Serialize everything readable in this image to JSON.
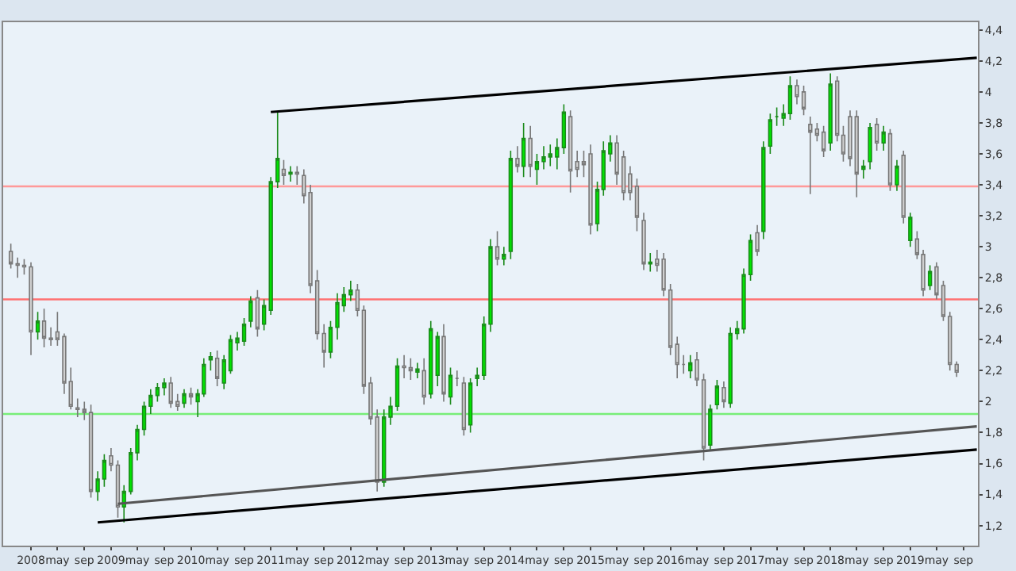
{
  "chart_data": {
    "type": "candlestick",
    "x": [
      "2007-10",
      "2007-11",
      "2007-12",
      "2008-01",
      "2008-02",
      "2008-03",
      "2008-04",
      "2008-05",
      "2008-06",
      "2008-07",
      "2008-08",
      "2008-09",
      "2008-10",
      "2008-11",
      "2008-12",
      "2009-01",
      "2009-02",
      "2009-03",
      "2009-04",
      "2009-05",
      "2009-06",
      "2009-07",
      "2009-08",
      "2009-09",
      "2009-10",
      "2009-11",
      "2009-12",
      "2010-01",
      "2010-02",
      "2010-03",
      "2010-04",
      "2010-05",
      "2010-06",
      "2010-07",
      "2010-08",
      "2010-09",
      "2010-10",
      "2010-11",
      "2010-12",
      "2011-01",
      "2011-02",
      "2011-03",
      "2011-04",
      "2011-05",
      "2011-06",
      "2011-07",
      "2011-08",
      "2011-09",
      "2011-10",
      "2011-11",
      "2011-12",
      "2012-01",
      "2012-02",
      "2012-03",
      "2012-04",
      "2012-05",
      "2012-06",
      "2012-07",
      "2012-08",
      "2012-09",
      "2012-10",
      "2012-11",
      "2012-12",
      "2013-01",
      "2013-02",
      "2013-03",
      "2013-04",
      "2013-05",
      "2013-06",
      "2013-07",
      "2013-08",
      "2013-09",
      "2013-10",
      "2013-11",
      "2013-12",
      "2014-01",
      "2014-02",
      "2014-03",
      "2014-04",
      "2014-05",
      "2014-06",
      "2014-07",
      "2014-08",
      "2014-09",
      "2014-10",
      "2014-11",
      "2014-12",
      "2015-01",
      "2015-02",
      "2015-03",
      "2015-04",
      "2015-05",
      "2015-06",
      "2015-07",
      "2015-08",
      "2015-09",
      "2015-10",
      "2015-11",
      "2015-12",
      "2016-01",
      "2016-02",
      "2016-03",
      "2016-04",
      "2016-05",
      "2016-06",
      "2016-07",
      "2016-08",
      "2016-09",
      "2016-10",
      "2016-11",
      "2016-12",
      "2017-01",
      "2017-02",
      "2017-03",
      "2017-04",
      "2017-05",
      "2017-06",
      "2017-07",
      "2017-08",
      "2017-09",
      "2017-10",
      "2017-11",
      "2017-12",
      "2018-01",
      "2018-02",
      "2018-03",
      "2018-04",
      "2018-05",
      "2018-06",
      "2018-07",
      "2018-08",
      "2018-09",
      "2018-10",
      "2018-11",
      "2018-12",
      "2019-01",
      "2019-02",
      "2019-03",
      "2019-04",
      "2019-05",
      "2019-06",
      "2019-07",
      "2019-08"
    ],
    "ohlc": [
      [
        2.97,
        3.02,
        2.86,
        2.89
      ],
      [
        2.89,
        2.93,
        2.8,
        2.88
      ],
      [
        2.88,
        2.92,
        2.82,
        2.87
      ],
      [
        2.87,
        2.9,
        2.3,
        2.45
      ],
      [
        2.45,
        2.58,
        2.4,
        2.52
      ],
      [
        2.52,
        2.6,
        2.35,
        2.41
      ],
      [
        2.41,
        2.48,
        2.36,
        2.4
      ],
      [
        2.45,
        2.58,
        2.36,
        2.4
      ],
      [
        2.42,
        2.44,
        2.05,
        2.12
      ],
      [
        2.13,
        2.22,
        1.95,
        1.97
      ],
      [
        1.96,
        2.02,
        1.9,
        1.95
      ],
      [
        1.95,
        2.0,
        1.88,
        1.93
      ],
      [
        1.93,
        1.98,
        1.38,
        1.42
      ],
      [
        1.42,
        1.55,
        1.36,
        1.5
      ],
      [
        1.5,
        1.66,
        1.45,
        1.62
      ],
      [
        1.65,
        1.7,
        1.55,
        1.59
      ],
      [
        1.59,
        1.62,
        1.25,
        1.32
      ],
      [
        1.32,
        1.46,
        1.22,
        1.42
      ],
      [
        1.42,
        1.7,
        1.4,
        1.67
      ],
      [
        1.67,
        1.85,
        1.62,
        1.82
      ],
      [
        1.82,
        2.0,
        1.78,
        1.97
      ],
      [
        1.97,
        2.08,
        1.92,
        2.04
      ],
      [
        2.04,
        2.12,
        2.0,
        2.09
      ],
      [
        2.09,
        2.15,
        2.04,
        2.12
      ],
      [
        2.12,
        2.16,
        1.96,
        1.99
      ],
      [
        2.0,
        2.05,
        1.94,
        1.97
      ],
      [
        1.99,
        2.08,
        1.96,
        2.05
      ],
      [
        2.05,
        2.09,
        1.98,
        2.03
      ],
      [
        2.0,
        2.08,
        1.9,
        2.05
      ],
      [
        2.05,
        2.28,
        2.03,
        2.24
      ],
      [
        2.27,
        2.32,
        2.2,
        2.29
      ],
      [
        2.28,
        2.33,
        2.1,
        2.15
      ],
      [
        2.12,
        2.3,
        2.08,
        2.27
      ],
      [
        2.2,
        2.43,
        2.18,
        2.4
      ],
      [
        2.38,
        2.45,
        2.33,
        2.41
      ],
      [
        2.39,
        2.54,
        2.36,
        2.5
      ],
      [
        2.52,
        2.68,
        2.48,
        2.65
      ],
      [
        2.67,
        2.72,
        2.42,
        2.47
      ],
      [
        2.5,
        2.66,
        2.46,
        2.62
      ],
      [
        2.59,
        3.45,
        2.56,
        3.42
      ],
      [
        3.42,
        3.87,
        3.38,
        3.57
      ],
      [
        3.5,
        3.56,
        3.4,
        3.46
      ],
      [
        3.47,
        3.52,
        3.42,
        3.48
      ],
      [
        3.48,
        3.52,
        3.4,
        3.47
      ],
      [
        3.46,
        3.5,
        3.28,
        3.33
      ],
      [
        3.35,
        3.4,
        2.7,
        2.75
      ],
      [
        2.78,
        2.85,
        2.4,
        2.44
      ],
      [
        2.44,
        2.5,
        2.22,
        2.32
      ],
      [
        2.32,
        2.52,
        2.28,
        2.48
      ],
      [
        2.48,
        2.7,
        2.4,
        2.64
      ],
      [
        2.62,
        2.74,
        2.58,
        2.69
      ],
      [
        2.69,
        2.78,
        2.65,
        2.72
      ],
      [
        2.72,
        2.76,
        2.55,
        2.59
      ],
      [
        2.59,
        2.62,
        2.05,
        2.1
      ],
      [
        2.12,
        2.16,
        1.85,
        1.89
      ],
      [
        1.9,
        1.95,
        1.42,
        1.48
      ],
      [
        1.48,
        1.95,
        1.45,
        1.9
      ],
      [
        1.9,
        2.03,
        1.85,
        1.97
      ],
      [
        1.97,
        2.28,
        1.94,
        2.23
      ],
      [
        2.23,
        2.3,
        2.15,
        2.22
      ],
      [
        2.22,
        2.28,
        2.14,
        2.2
      ],
      [
        2.19,
        2.25,
        2.15,
        2.21
      ],
      [
        2.2,
        2.28,
        1.98,
        2.03
      ],
      [
        2.05,
        2.52,
        2.02,
        2.47
      ],
      [
        2.17,
        2.45,
        2.1,
        2.42
      ],
      [
        2.42,
        2.5,
        2.0,
        2.05
      ],
      [
        2.03,
        2.22,
        1.98,
        2.17
      ],
      [
        2.15,
        2.2,
        2.1,
        2.15
      ],
      [
        2.12,
        2.16,
        1.78,
        1.82
      ],
      [
        1.85,
        2.15,
        1.8,
        2.12
      ],
      [
        2.15,
        2.22,
        2.1,
        2.17
      ],
      [
        2.17,
        2.55,
        2.14,
        2.5
      ],
      [
        2.5,
        3.05,
        2.45,
        3.0
      ],
      [
        3.0,
        3.1,
        2.88,
        2.92
      ],
      [
        2.92,
        3.0,
        2.88,
        2.95
      ],
      [
        2.97,
        3.62,
        2.92,
        3.57
      ],
      [
        3.57,
        3.65,
        3.48,
        3.52
      ],
      [
        3.52,
        3.8,
        3.45,
        3.7
      ],
      [
        3.7,
        3.78,
        3.45,
        3.52
      ],
      [
        3.5,
        3.6,
        3.4,
        3.55
      ],
      [
        3.55,
        3.65,
        3.5,
        3.58
      ],
      [
        3.58,
        3.66,
        3.52,
        3.6
      ],
      [
        3.58,
        3.7,
        3.5,
        3.64
      ],
      [
        3.64,
        3.92,
        3.6,
        3.87
      ],
      [
        3.84,
        3.88,
        3.35,
        3.49
      ],
      [
        3.55,
        3.62,
        3.45,
        3.5
      ],
      [
        3.55,
        3.62,
        3.45,
        3.53
      ],
      [
        3.6,
        3.66,
        3.08,
        3.14
      ],
      [
        3.15,
        3.42,
        3.1,
        3.37
      ],
      [
        3.37,
        3.68,
        3.33,
        3.62
      ],
      [
        3.6,
        3.72,
        3.55,
        3.67
      ],
      [
        3.67,
        3.72,
        3.4,
        3.47
      ],
      [
        3.58,
        3.62,
        3.3,
        3.35
      ],
      [
        3.47,
        3.52,
        3.3,
        3.35
      ],
      [
        3.39,
        3.44,
        3.1,
        3.19
      ],
      [
        3.17,
        3.22,
        2.85,
        2.89
      ],
      [
        2.89,
        2.96,
        2.84,
        2.9
      ],
      [
        2.92,
        2.98,
        2.84,
        2.88
      ],
      [
        2.92,
        2.96,
        2.68,
        2.72
      ],
      [
        2.72,
        2.76,
        2.3,
        2.35
      ],
      [
        2.37,
        2.42,
        2.15,
        2.24
      ],
      [
        2.24,
        2.3,
        2.18,
        2.24
      ],
      [
        2.2,
        2.3,
        2.15,
        2.25
      ],
      [
        2.27,
        2.32,
        2.1,
        2.14
      ],
      [
        2.14,
        2.18,
        1.62,
        1.7
      ],
      [
        1.72,
        1.98,
        1.68,
        1.95
      ],
      [
        1.98,
        2.14,
        1.95,
        2.1
      ],
      [
        2.09,
        2.13,
        1.96,
        2.0
      ],
      [
        1.99,
        2.48,
        1.96,
        2.44
      ],
      [
        2.44,
        2.52,
        2.4,
        2.47
      ],
      [
        2.47,
        2.86,
        2.44,
        2.82
      ],
      [
        2.82,
        3.08,
        2.78,
        3.04
      ],
      [
        3.09,
        3.14,
        2.94,
        2.97
      ],
      [
        3.1,
        3.68,
        3.05,
        3.64
      ],
      [
        3.65,
        3.86,
        3.6,
        3.82
      ],
      [
        3.84,
        3.9,
        3.78,
        3.84
      ],
      [
        3.83,
        3.92,
        3.78,
        3.86
      ],
      [
        3.86,
        4.1,
        3.82,
        4.04
      ],
      [
        4.04,
        4.08,
        3.92,
        3.97
      ],
      [
        4.0,
        4.04,
        3.85,
        3.89
      ],
      [
        3.79,
        3.84,
        3.34,
        3.74
      ],
      [
        3.76,
        3.8,
        3.68,
        3.72
      ],
      [
        3.74,
        3.78,
        3.58,
        3.62
      ],
      [
        3.67,
        4.12,
        3.62,
        4.05
      ],
      [
        4.07,
        4.1,
        3.68,
        3.72
      ],
      [
        3.72,
        3.78,
        3.55,
        3.6
      ],
      [
        3.84,
        3.88,
        3.52,
        3.57
      ],
      [
        3.84,
        3.88,
        3.32,
        3.47
      ],
      [
        3.5,
        3.56,
        3.44,
        3.52
      ],
      [
        3.55,
        3.8,
        3.5,
        3.77
      ],
      [
        3.79,
        3.83,
        3.62,
        3.67
      ],
      [
        3.67,
        3.78,
        3.62,
        3.74
      ],
      [
        3.73,
        3.76,
        3.36,
        3.4
      ],
      [
        3.4,
        3.56,
        3.36,
        3.52
      ],
      [
        3.59,
        3.62,
        3.15,
        3.19
      ],
      [
        3.04,
        3.22,
        3.0,
        3.19
      ],
      [
        3.05,
        3.1,
        2.92,
        2.95
      ],
      [
        2.95,
        2.98,
        2.68,
        2.72
      ],
      [
        2.75,
        2.88,
        2.72,
        2.84
      ],
      [
        2.87,
        2.9,
        2.66,
        2.69
      ],
      [
        2.75,
        2.78,
        2.52,
        2.55
      ],
      [
        2.55,
        2.58,
        2.2,
        2.24
      ],
      [
        2.24,
        2.26,
        2.16,
        2.19
      ]
    ],
    "series": [
      {
        "type": "line",
        "x": [
          "2011-01",
          "2019-11"
        ],
        "values": [
          3.87,
          4.22
        ],
        "color": "#000000"
      },
      {
        "type": "line",
        "x": [
          "2008-11",
          "2019-11"
        ],
        "values": [
          1.22,
          1.69
        ],
        "color": "#000000"
      },
      {
        "type": "line",
        "x": [
          "2009-02",
          "2019-11"
        ],
        "values": [
          1.34,
          1.84
        ],
        "color": "#555555"
      }
    ],
    "ref_lines": [
      {
        "axis": "y",
        "value": 3.39,
        "color": "#ff9999"
      },
      {
        "axis": "y",
        "value": 2.66,
        "color": "#ff7070"
      },
      {
        "axis": "y",
        "value": 1.92,
        "color": "#77ee77"
      }
    ],
    "xlim": [
      "2007-09-10",
      "2019-11-20"
    ],
    "xticks": [
      {
        "value": "2008-01",
        "label": "2008"
      },
      {
        "value": "2008-05",
        "label": "may"
      },
      {
        "value": "2008-09",
        "label": "sep"
      },
      {
        "value": "2009-01",
        "label": "2009"
      },
      {
        "value": "2009-05",
        "label": "may"
      },
      {
        "value": "2009-09",
        "label": "sep"
      },
      {
        "value": "2010-01",
        "label": "2010"
      },
      {
        "value": "2010-05",
        "label": "may"
      },
      {
        "value": "2010-09",
        "label": "sep"
      },
      {
        "value": "2011-01",
        "label": "2011"
      },
      {
        "value": "2011-05",
        "label": "may"
      },
      {
        "value": "2011-09",
        "label": "sep"
      },
      {
        "value": "2012-01",
        "label": "2012"
      },
      {
        "value": "2012-05",
        "label": "may"
      },
      {
        "value": "2012-09",
        "label": "sep"
      },
      {
        "value": "2013-01",
        "label": "2013"
      },
      {
        "value": "2013-05",
        "label": "may"
      },
      {
        "value": "2013-09",
        "label": "sep"
      },
      {
        "value": "2014-01",
        "label": "2014"
      },
      {
        "value": "2014-05",
        "label": "may"
      },
      {
        "value": "2014-09",
        "label": "sep"
      },
      {
        "value": "2015-01",
        "label": "2015"
      },
      {
        "value": "2015-05",
        "label": "may"
      },
      {
        "value": "2015-09",
        "label": "sep"
      },
      {
        "value": "2016-01",
        "label": "2016"
      },
      {
        "value": "2016-05",
        "label": "may"
      },
      {
        "value": "2016-09",
        "label": "sep"
      },
      {
        "value": "2017-01",
        "label": "2017"
      },
      {
        "value": "2017-05",
        "label": "may"
      },
      {
        "value": "2017-09",
        "label": "sep"
      },
      {
        "value": "2018-01",
        "label": "2018"
      },
      {
        "value": "2018-05",
        "label": "may"
      },
      {
        "value": "2018-09",
        "label": "sep"
      },
      {
        "value": "2019-01",
        "label": "2019"
      },
      {
        "value": "2019-05",
        "label": "may"
      },
      {
        "value": "2019-09",
        "label": "sep"
      }
    ],
    "ylim": [
      1.07,
      4.45
    ],
    "yticks": [
      {
        "value": 1.2,
        "label": "1,2"
      },
      {
        "value": 1.4,
        "label": "1,4"
      },
      {
        "value": 1.6,
        "label": "1,6"
      },
      {
        "value": 1.8,
        "label": "1,8"
      },
      {
        "value": 2,
        "label": "2"
      },
      {
        "value": 2.2,
        "label": "2,2"
      },
      {
        "value": 2.4,
        "label": "2,4"
      },
      {
        "value": 2.6,
        "label": "2,6"
      },
      {
        "value": 2.8,
        "label": "2,8"
      },
      {
        "value": 3,
        "label": "3"
      },
      {
        "value": 3.2,
        "label": "3,2"
      },
      {
        "value": 3.4,
        "label": "3,4"
      },
      {
        "value": 3.6,
        "label": "3,6"
      },
      {
        "value": 3.8,
        "label": "3,8"
      },
      {
        "value": 4,
        "label": "4"
      },
      {
        "value": 4.2,
        "label": "4,2"
      },
      {
        "value": 4.4,
        "label": "4,4"
      }
    ],
    "grid": false
  }
}
